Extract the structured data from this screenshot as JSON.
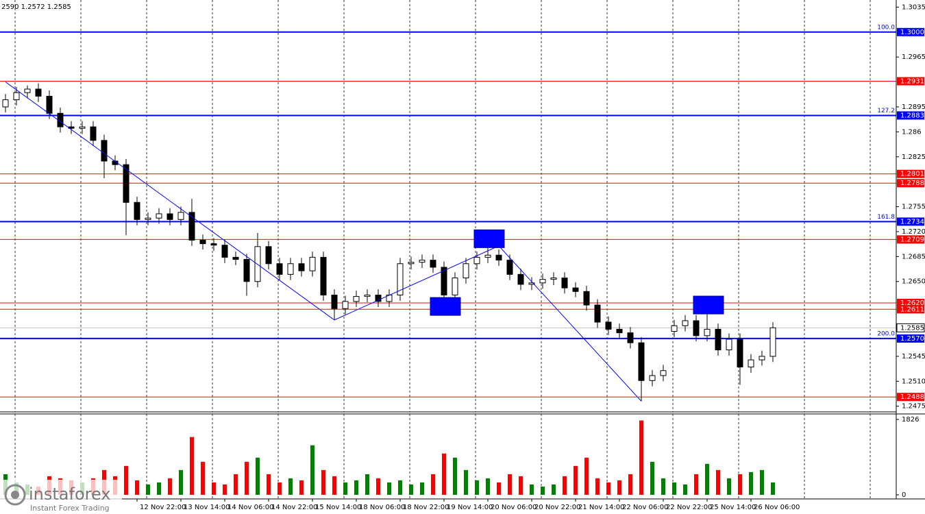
{
  "chart_data": {
    "type": "candlestick",
    "header": "2590 1.2572 1.2585",
    "watermark": {
      "brand": "instaforex",
      "tagline": "Instant Forex Trading"
    },
    "categories": [
      null,
      null,
      null,
      null,
      null,
      null,
      null,
      null,
      null,
      null,
      null,
      null,
      "12 Nov 22:00",
      null,
      null,
      null,
      "13 Nov 14:00",
      null,
      null,
      null,
      "14 Nov 06:00",
      null,
      null,
      null,
      "14 Nov 22:00",
      null,
      null,
      null,
      "15 Nov 14:00",
      null,
      null,
      null,
      "18 Nov 06:00",
      null,
      null,
      null,
      "18 Nov 22:00",
      null,
      null,
      null,
      "19 Nov 14:00",
      null,
      null,
      null,
      "20 Nov 06:00",
      null,
      null,
      null,
      "20 Nov 22:00",
      null,
      null,
      null,
      "21 Nov 14:00",
      null,
      null,
      null,
      "22 Nov 06:00",
      null,
      null,
      null,
      "22 Nov 22:00",
      null,
      null,
      null,
      "25 Nov 14:00",
      null,
      null,
      null,
      "26 Nov 06:00",
      null,
      null
    ],
    "open": [
      1.2895,
      1.2905,
      1.2915,
      1.292,
      1.291,
      1.2886,
      1.2867,
      1.2865,
      1.2867,
      1.2848,
      1.2819,
      1.2814,
      1.2761,
      1.2737,
      1.2739,
      1.2745,
      1.2737,
      1.2747,
      1.2708,
      1.2703,
      1.2701,
      1.2684,
      1.2681,
      1.265,
      1.2699,
      1.2675,
      1.266,
      1.2675,
      1.2665,
      1.2684,
      1.2631,
      1.2612,
      1.2622,
      1.2629,
      1.2631,
      1.2622,
      1.2631,
      1.2675,
      1.2677,
      1.268,
      1.267,
      1.2631,
      1.2655,
      1.2675,
      1.2684,
      1.2687,
      1.268,
      1.266,
      1.2646,
      1.2648,
      1.2653,
      1.2655,
      1.2641,
      1.2636,
      1.2617,
      1.2593,
      1.2583,
      1.2578,
      1.2564,
      1.2511,
      1.2518,
      1.258,
      1.2588,
      1.2595,
      1.2574,
      1.2583,
      1.2554,
      1.2569,
      1.253,
      1.254,
      1.2545
    ],
    "high": [
      1.2913,
      1.2923,
      1.2925,
      1.2928,
      1.2918,
      1.2894,
      1.2875,
      1.2875,
      1.2875,
      1.2856,
      1.2827,
      1.2822,
      1.2769,
      1.2747,
      1.2753,
      1.2753,
      1.2755,
      1.2766,
      1.2716,
      1.2711,
      1.2709,
      1.2692,
      1.2689,
      1.2718,
      1.2707,
      1.2683,
      1.2683,
      1.2683,
      1.2692,
      1.2692,
      1.2639,
      1.263,
      1.2637,
      1.2639,
      1.2639,
      1.2639,
      1.2683,
      1.2685,
      1.2688,
      1.2688,
      1.2678,
      1.2663,
      1.2683,
      1.2692,
      1.27,
      1.2695,
      1.2688,
      1.2668,
      1.2656,
      1.2661,
      1.2663,
      1.2663,
      1.2649,
      1.2644,
      1.2625,
      1.2601,
      1.2591,
      1.2586,
      1.2572,
      1.2526,
      1.2533,
      1.2596,
      1.2603,
      1.2603,
      1.2618,
      1.2591,
      1.2577,
      1.2577,
      1.2548,
      1.2553,
      1.2593
    ],
    "low": [
      1.2887,
      1.2897,
      1.2907,
      1.2902,
      1.2878,
      1.2859,
      1.2857,
      1.2857,
      1.284,
      1.2795,
      1.2806,
      1.2715,
      1.2729,
      1.2729,
      1.2731,
      1.2729,
      1.2729,
      1.27,
      1.2695,
      1.2693,
      1.2676,
      1.2673,
      1.263,
      1.2642,
      1.2667,
      1.2652,
      1.2652,
      1.2657,
      1.2657,
      1.2623,
      1.2596,
      1.2604,
      1.2614,
      1.2621,
      1.2614,
      1.2614,
      1.2623,
      1.2667,
      1.2669,
      1.2662,
      1.2618,
      1.2623,
      1.2647,
      1.2667,
      1.2676,
      1.2672,
      1.2652,
      1.2638,
      1.2638,
      1.264,
      1.2645,
      1.2633,
      1.2628,
      1.2609,
      1.2585,
      1.2575,
      1.257,
      1.2556,
      1.2482,
      1.2503,
      1.251,
      1.2572,
      1.258,
      1.2566,
      1.2566,
      1.2546,
      1.2546,
      1.2505,
      1.2522,
      1.2532,
      1.2537
    ],
    "close": [
      1.2905,
      1.2915,
      1.292,
      1.291,
      1.2886,
      1.2867,
      1.2865,
      1.2867,
      1.2848,
      1.2819,
      1.2814,
      1.2761,
      1.2737,
      1.2739,
      1.2745,
      1.2737,
      1.2747,
      1.2708,
      1.2703,
      1.2701,
      1.2684,
      1.2681,
      1.265,
      1.2699,
      1.2675,
      1.266,
      1.2675,
      1.2665,
      1.2684,
      1.2631,
      1.2612,
      1.2622,
      1.2629,
      1.2631,
      1.2622,
      1.2631,
      1.2675,
      1.2677,
      1.268,
      1.267,
      1.2631,
      1.2655,
      1.2675,
      1.2684,
      1.2687,
      1.268,
      1.266,
      1.2646,
      1.2648,
      1.2653,
      1.2655,
      1.2641,
      1.2636,
      1.2617,
      1.2593,
      1.2583,
      1.2578,
      1.2564,
      1.2511,
      1.2518,
      1.2525,
      1.2588,
      1.2595,
      1.2574,
      1.2583,
      1.2554,
      1.2569,
      1.253,
      1.254,
      1.2545,
      1.2585
    ],
    "volume": [
      500,
      300,
      250,
      200,
      450,
      400,
      350,
      300,
      400,
      600,
      450,
      700,
      350,
      250,
      300,
      400,
      600,
      1400,
      800,
      300,
      250,
      500,
      800,
      900,
      500,
      300,
      400,
      350,
      1200,
      600,
      450,
      300,
      350,
      500,
      400,
      300,
      350,
      250,
      300,
      500,
      1000,
      900,
      600,
      350,
      400,
      300,
      500,
      450,
      250,
      200,
      250,
      450,
      700,
      900,
      400,
      300,
      350,
      500,
      1800,
      800,
      400,
      300,
      250,
      500,
      750,
      600,
      400,
      500,
      550,
      600,
      300
    ],
    "up_color": "#008000",
    "down_color": "#ff0000",
    "ylim": [
      1.2468,
      1.3045
    ],
    "yticks": [
      1.3035,
      1.2965,
      1.2895,
      1.286,
      1.2825,
      1.2755,
      {
        "value": 1.272,
        "label": "1.2720"
      },
      1.2685,
      {
        "value": 1.265,
        "label": "1.2650"
      },
      1.2545,
      {
        "value": 1.251,
        "label": "1.2510"
      },
      1.2475
    ],
    "vlim": [
      0,
      1826
    ],
    "vticks": [
      1826,
      0
    ],
    "levels": [
      {
        "price": {
          "value": 1.3,
          "label": "1.3000"
        },
        "color": "#0000ff",
        "fib": "100.0"
      },
      {
        "price": 1.2931,
        "color": "#ff0000"
      },
      {
        "price": 1.2883,
        "color": "#0000ff",
        "fib": "127.2"
      },
      {
        "price": 1.2801,
        "color": "#ff0000"
      },
      {
        "price": 1.2788,
        "color": "#ff0000"
      },
      {
        "price": 1.2734,
        "color": "#0000ff",
        "fib": "161.8"
      },
      {
        "price": 1.2709,
        "color": "#ff0000"
      },
      {
        "price": {
          "value": 1.262,
          "label": "1.2620"
        },
        "color": "#ff0000"
      },
      {
        "price": 1.2611,
        "color": "#ff0000"
      },
      {
        "price": {
          "value": 1.257,
          "label": "1.2570"
        },
        "color": "#0000ff",
        "fib": "200.0"
      },
      {
        "price": 1.2488,
        "color": "#ff0000"
      }
    ],
    "current_price": 1.2585,
    "zigzag": {
      "x": [
        0,
        30,
        45,
        58
      ],
      "values": [
        1.293,
        1.2596,
        1.27,
        1.2482
      ],
      "color": "#0000ff"
    },
    "markers": {
      "x": [
        40,
        44,
        64
      ],
      "values": [
        1.2615,
        1.271,
        1.2617
      ],
      "color": "#0000ff"
    },
    "grid": true
  }
}
